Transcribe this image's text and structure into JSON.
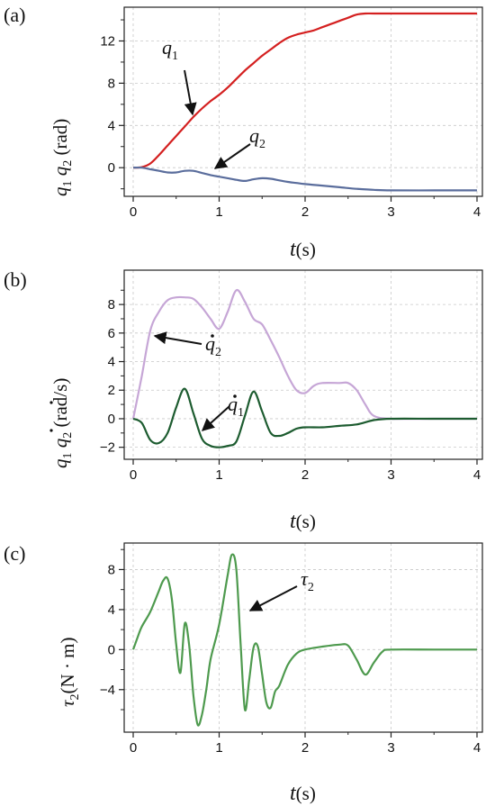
{
  "chart_data": [
    {
      "panel": "(a)",
      "type": "line",
      "xlabel": "t(s)",
      "ylabel": "q1 q2 (rad)",
      "xlim": [
        0,
        4
      ],
      "ylim": [
        -2.2,
        14.6
      ],
      "xticks": [
        0,
        1,
        2,
        3,
        4
      ],
      "yticks": [
        0,
        4,
        8,
        12
      ],
      "grid": true,
      "series": [
        {
          "name": "q1",
          "color": "#d42020",
          "x": [
            0,
            0.1,
            0.2,
            0.3,
            0.4,
            0.5,
            0.6,
            0.7,
            0.8,
            0.9,
            1.0,
            1.1,
            1.2,
            1.3,
            1.4,
            1.5,
            1.6,
            1.7,
            1.8,
            1.9,
            2.0,
            2.1,
            2.2,
            2.3,
            2.4,
            2.5,
            2.6,
            2.7,
            2.8,
            3.0,
            3.5,
            4.0
          ],
          "y": [
            0,
            0.05,
            0.4,
            1.2,
            2.1,
            3.0,
            3.9,
            4.8,
            5.6,
            6.3,
            6.9,
            7.6,
            8.4,
            9.2,
            9.9,
            10.6,
            11.2,
            11.8,
            12.3,
            12.6,
            12.8,
            13.0,
            13.3,
            13.6,
            13.9,
            14.2,
            14.5,
            14.6,
            14.6,
            14.6,
            14.6,
            14.6
          ]
        },
        {
          "name": "q2",
          "color": "#5a6d9c",
          "x": [
            0,
            0.1,
            0.2,
            0.3,
            0.4,
            0.5,
            0.6,
            0.7,
            0.8,
            0.9,
            1.0,
            1.1,
            1.2,
            1.3,
            1.4,
            1.5,
            1.6,
            1.7,
            1.8,
            1.9,
            2.0,
            2.2,
            2.4,
            2.6,
            2.8,
            3.0,
            3.5,
            4.0
          ],
          "y": [
            0,
            0.0,
            -0.15,
            -0.3,
            -0.45,
            -0.45,
            -0.3,
            -0.3,
            -0.5,
            -0.7,
            -0.85,
            -1.0,
            -1.15,
            -1.25,
            -1.1,
            -1.0,
            -1.05,
            -1.2,
            -1.35,
            -1.45,
            -1.55,
            -1.7,
            -1.85,
            -2.0,
            -2.1,
            -2.15,
            -2.15,
            -2.15
          ]
        }
      ],
      "annotations": [
        "q1",
        "q2"
      ]
    },
    {
      "panel": "(b)",
      "type": "line",
      "xlabel": "t(s)",
      "ylabel": "q̇1 q̇2 (rad/s)",
      "xlim": [
        0,
        4
      ],
      "ylim": [
        -2.4,
        9.9
      ],
      "xticks": [
        0,
        1,
        2,
        3,
        4
      ],
      "yticks": [
        -2,
        0,
        2,
        4,
        6,
        8
      ],
      "grid": true,
      "series": [
        {
          "name": "q̇2",
          "color": "#c6a6d6",
          "x": [
            0,
            0.1,
            0.2,
            0.3,
            0.4,
            0.5,
            0.6,
            0.7,
            0.8,
            0.9,
            1.0,
            1.1,
            1.2,
            1.3,
            1.4,
            1.5,
            1.6,
            1.7,
            1.8,
            1.9,
            2.0,
            2.1,
            2.2,
            2.4,
            2.5,
            2.6,
            2.7,
            2.8,
            3.0,
            3.5,
            4.0
          ],
          "y": [
            0,
            3.0,
            6.2,
            7.5,
            8.3,
            8.5,
            8.5,
            8.4,
            7.8,
            7.0,
            6.3,
            7.5,
            9.0,
            8.2,
            7.0,
            6.6,
            5.5,
            4.3,
            3.0,
            2.0,
            1.8,
            2.3,
            2.5,
            2.5,
            2.5,
            2.0,
            1.0,
            0.2,
            0,
            0,
            0
          ]
        },
        {
          "name": "q̇1",
          "color": "#1d5c30",
          "x": [
            0,
            0.1,
            0.2,
            0.3,
            0.4,
            0.5,
            0.6,
            0.7,
            0.8,
            0.9,
            1.0,
            1.1,
            1.2,
            1.3,
            1.4,
            1.5,
            1.6,
            1.7,
            1.8,
            1.9,
            2.0,
            2.2,
            2.4,
            2.6,
            2.8,
            3.0,
            3.5,
            4.0
          ],
          "y": [
            0,
            -0.3,
            -1.5,
            -1.7,
            -1.0,
            0.8,
            2.1,
            0.4,
            -1.4,
            -1.9,
            -2.0,
            -1.9,
            -1.6,
            0.2,
            1.9,
            0.5,
            -1.0,
            -1.2,
            -1.0,
            -0.7,
            -0.6,
            -0.6,
            -0.5,
            -0.4,
            -0.1,
            0,
            0,
            0
          ]
        }
      ],
      "annotations": [
        "q̇2",
        "q̇1"
      ]
    },
    {
      "panel": "(c)",
      "type": "line",
      "xlabel": "t(s)",
      "ylabel": "τ2 (N·m)",
      "xlim": [
        0,
        4
      ],
      "ylim": [
        -7.8,
        10.2
      ],
      "xticks": [
        0,
        1,
        2,
        3,
        4
      ],
      "yticks": [
        -4,
        0,
        4,
        8
      ],
      "grid": true,
      "series": [
        {
          "name": "τ2",
          "color": "#4e9a4e",
          "x": [
            0,
            0.05,
            0.1,
            0.2,
            0.3,
            0.35,
            0.4,
            0.45,
            0.5,
            0.55,
            0.6,
            0.65,
            0.7,
            0.75,
            0.8,
            0.85,
            0.9,
            1.0,
            1.1,
            1.15,
            1.2,
            1.25,
            1.3,
            1.35,
            1.4,
            1.45,
            1.5,
            1.55,
            1.6,
            1.65,
            1.7,
            1.8,
            1.9,
            2.0,
            2.2,
            2.4,
            2.5,
            2.6,
            2.7,
            2.8,
            2.9,
            3.0,
            3.5,
            4.0
          ],
          "y": [
            0,
            1.2,
            2.3,
            3.8,
            5.9,
            6.9,
            7.1,
            5.0,
            0.5,
            -2.3,
            2.6,
            0.5,
            -4.5,
            -7.5,
            -6.5,
            -4.0,
            -1.0,
            2.5,
            7.5,
            9.5,
            8.0,
            0.5,
            -6.0,
            -3.0,
            0.2,
            0.3,
            -2.5,
            -5.3,
            -5.8,
            -4.2,
            -3.6,
            -1.5,
            -0.4,
            0.0,
            0.3,
            0.5,
            0.4,
            -1.0,
            -2.5,
            -1.3,
            -0.2,
            0,
            0,
            0
          ]
        }
      ],
      "annotations": [
        "τ2"
      ]
    }
  ],
  "panels": {
    "a": {
      "label": "(a)",
      "xlabel": "(s)",
      "xlabel_var": "t"
    },
    "b": {
      "label": "(b)",
      "xlabel": "(s)",
      "xlabel_var": "t"
    },
    "c": {
      "label": "(c)",
      "xlabel": "(s)",
      "xlabel_var": "t"
    }
  },
  "ylabels": {
    "a": {
      "q1": "q",
      "sub1": "1",
      "q2": "q",
      "sub2": "2",
      "unit": "(rad)"
    },
    "b": {
      "q1": "q",
      "sub1": "1",
      "q2": "q",
      "sub2": "2",
      "unit": "(rad/s)"
    },
    "c": {
      "tau": "τ",
      "sub": "2",
      "unit": "(N · m)"
    }
  },
  "annotations": {
    "q1": {
      "sym": "q",
      "sub": "1"
    },
    "q2": {
      "sym": "q",
      "sub": "2"
    },
    "qd2": {
      "sym": "q",
      "sub": "2"
    },
    "qd1": {
      "sym": "q",
      "sub": "1"
    },
    "tau2": {
      "sym": "τ",
      "sub": "2"
    }
  }
}
